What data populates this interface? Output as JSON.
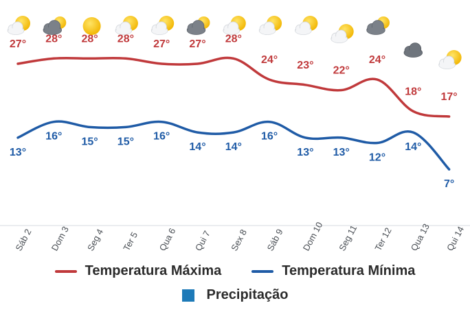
{
  "chart_data": {
    "type": "line",
    "categories": [
      "Sáb 2",
      "Dom 3",
      "Seg 4",
      "Ter 5",
      "Qua 6",
      "Qui 7",
      "Sex 8",
      "Sáb 9",
      "Dom 10",
      "Seg 11",
      "Ter 12",
      "Qua 13",
      "Qui 14"
    ],
    "icons": [
      "sun-cloud-icon",
      "dark-cloud-sun-icon",
      "sun-icon",
      "sun-cloud-icon",
      "sun-cloud-icon",
      "dark-cloud-sun-icon",
      "sun-cloud-icon",
      "sun-cloud-icon",
      "sun-cloud-icon",
      "sun-cloud-icon",
      "dark-cloud-sun-icon",
      "dark-cloud-icon",
      "sun-cloud-icon"
    ],
    "series": [
      {
        "name": "Temperatura Máxima",
        "color": "#c0393b",
        "values": [
          27,
          28,
          28,
          28,
          27,
          27,
          28,
          24,
          23,
          22,
          24,
          18,
          17
        ],
        "labels": [
          "27°",
          "28°",
          "28°",
          "28°",
          "27°",
          "27°",
          "28°",
          "24°",
          "23°",
          "22°",
          "24°",
          "18°",
          "17°"
        ]
      },
      {
        "name": "Temperatura Mínima",
        "color": "#1f5ba6",
        "values": [
          13,
          16,
          15,
          15,
          16,
          14,
          14,
          16,
          13,
          13,
          12,
          14,
          7
        ],
        "labels": [
          "13°",
          "16°",
          "15°",
          "15°",
          "16°",
          "14°",
          "14°",
          "16°",
          "13°",
          "13°",
          "12°",
          "14°",
          "7°"
        ]
      }
    ],
    "extra_legend": {
      "name": "Precipitação",
      "color": "#1d7ab8"
    },
    "grid": false
  }
}
